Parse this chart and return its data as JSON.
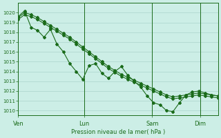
{
  "bg_color": "#cceee6",
  "grid_color": "#aad4cc",
  "line_color": "#1a6b1a",
  "marker_color": "#1a6b1a",
  "xlabel": "Pression niveau de la mer( hPa )",
  "xlabel_color": "#1a6b1a",
  "tick_color": "#1a6b1a",
  "spine_color": "#1a6b1a",
  "ylim": [
    1009.5,
    1021.0
  ],
  "yticks": [
    1010,
    1011,
    1012,
    1013,
    1014,
    1015,
    1016,
    1017,
    1018,
    1019,
    1020
  ],
  "xtick_labels": [
    "Ven",
    "Lun",
    "Sam",
    "Dim"
  ],
  "xtick_positions": [
    0.0,
    0.33,
    0.67,
    0.91
  ],
  "vline_positions": [
    0.0,
    0.33,
    0.67,
    0.91
  ],
  "smooth_line": [
    1019.5,
    1020.0,
    1019.8,
    1019.5,
    1019.1,
    1018.7,
    1018.3,
    1017.9,
    1017.5,
    1017.0,
    1016.5,
    1016.0,
    1015.5,
    1015.0,
    1014.5,
    1014.1,
    1013.7,
    1013.4,
    1013.1,
    1012.8,
    1012.5,
    1012.2,
    1011.9,
    1011.6,
    1011.4,
    1011.5,
    1011.6,
    1011.7,
    1011.8,
    1011.7,
    1011.6,
    1011.5
  ],
  "smooth_line2": [
    1019.3,
    1019.8,
    1019.6,
    1019.3,
    1018.9,
    1018.5,
    1018.1,
    1017.7,
    1017.3,
    1016.8,
    1016.3,
    1015.8,
    1015.3,
    1014.8,
    1014.3,
    1013.9,
    1013.5,
    1013.2,
    1012.9,
    1012.6,
    1012.3,
    1012.0,
    1011.7,
    1011.4,
    1011.2,
    1011.3,
    1011.4,
    1011.5,
    1011.6,
    1011.5,
    1011.4,
    1011.3
  ],
  "zigzag_line": [
    1019.6,
    1020.2,
    1018.5,
    1018.2,
    1017.5,
    1018.3,
    1016.8,
    1016.0,
    1014.8,
    1014.0,
    1013.2,
    1014.6,
    1014.8,
    1013.8,
    1013.3,
    1014.0,
    1014.5,
    1013.6,
    1013.0,
    1012.4,
    1011.5,
    1010.8,
    1010.6,
    1010.0,
    1009.9,
    1010.8,
    1011.6,
    1011.9,
    1012.0,
    1011.8,
    1011.6,
    1011.5
  ]
}
